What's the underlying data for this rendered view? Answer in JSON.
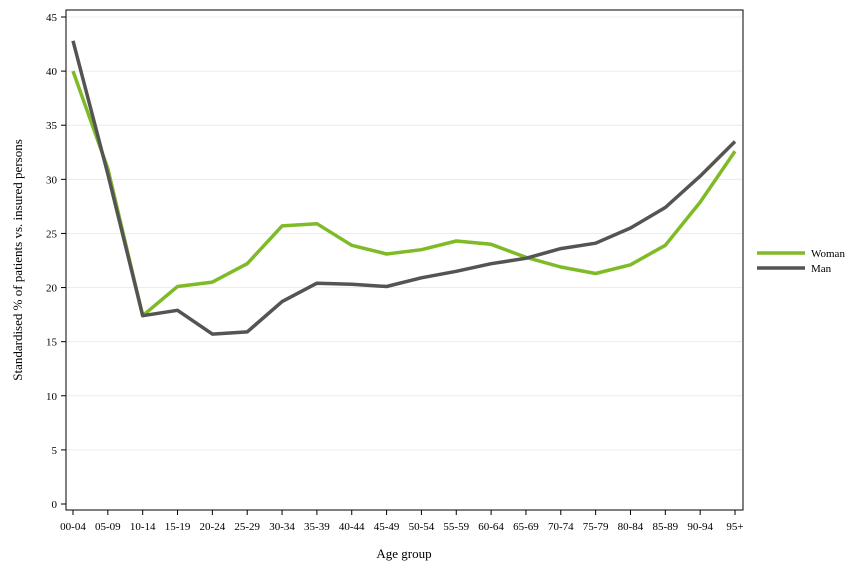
{
  "chart_data": {
    "type": "line",
    "xlabel": "Age group",
    "ylabel": "Standardised % of patients vs. insured persons",
    "categories": [
      "00-04",
      "05-09",
      "10-14",
      "15-19",
      "20-24",
      "25-29",
      "30-34",
      "35-39",
      "40-44",
      "45-49",
      "50-54",
      "55-59",
      "60-64",
      "65-69",
      "70-74",
      "75-79",
      "80-84",
      "85-89",
      "90-94",
      "95+"
    ],
    "yticks": [
      "0",
      "5",
      "10",
      "15",
      "20",
      "25",
      "30",
      "35",
      "40",
      "45"
    ],
    "ylim": [
      0,
      45
    ],
    "grid": "horizontal",
    "legend": "right",
    "series": [
      {
        "name": "Woman",
        "color": "#7fba27",
        "values": [
          40.0,
          31.0,
          17.4,
          20.1,
          20.5,
          22.2,
          25.7,
          25.9,
          23.9,
          23.1,
          23.5,
          24.3,
          24.0,
          22.8,
          21.9,
          21.3,
          22.1,
          23.9,
          27.9,
          32.6
        ]
      },
      {
        "name": "Man",
        "color": "#545454",
        "values": [
          42.8,
          30.5,
          17.4,
          17.9,
          15.7,
          15.9,
          18.7,
          20.4,
          20.3,
          20.1,
          20.9,
          21.5,
          22.2,
          22.7,
          23.6,
          24.1,
          25.5,
          27.4,
          30.3,
          33.5
        ]
      }
    ]
  }
}
